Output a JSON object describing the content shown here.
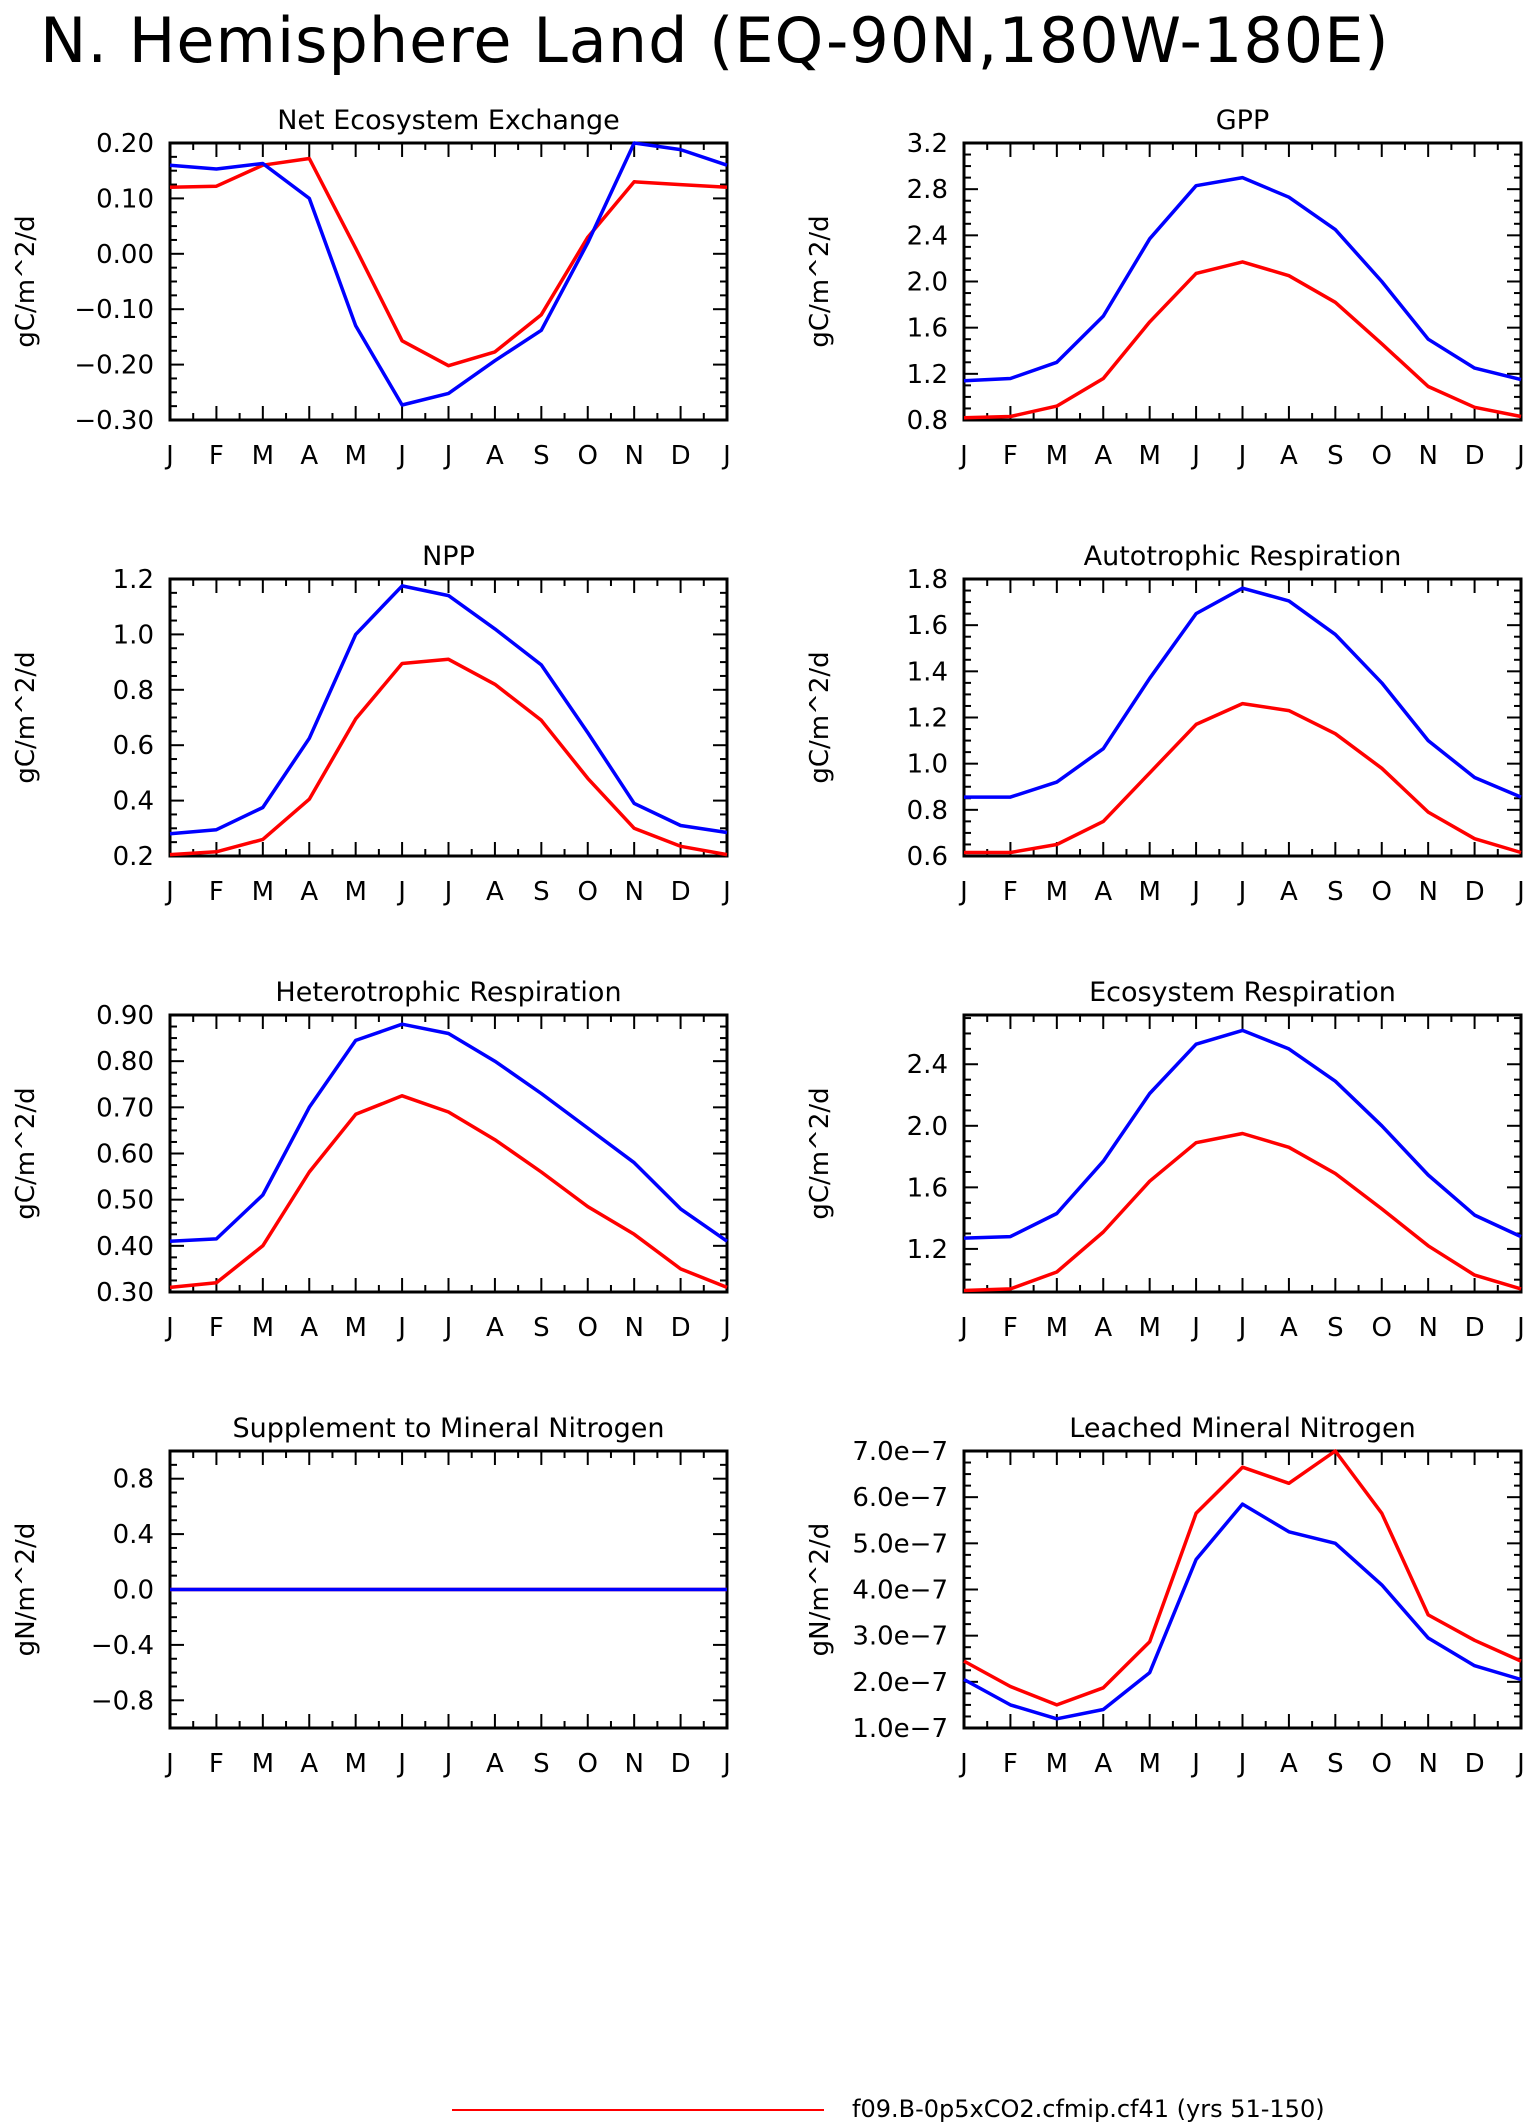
{
  "page_title": "N. Hemisphere Land (EQ-90N,180W-180E)",
  "legend": {
    "label": "f09.B-0p5xCO2.cfmip.cf41 (yrs 51-150)",
    "color": "#ff0000"
  },
  "colors": {
    "red_series": "#ff0000",
    "blue_series": "#0000ff",
    "axis": "#000000"
  },
  "chart_data": [
    {
      "type": "line",
      "title": "Net Ecosystem Exchange",
      "ylabel": "gC/m^2/d",
      "categories": [
        "J",
        "F",
        "M",
        "A",
        "M",
        "J",
        "J",
        "A",
        "S",
        "O",
        "N",
        "D",
        "J"
      ],
      "ylim": [
        -0.3,
        0.2
      ],
      "yticks": [
        -0.3,
        -0.2,
        -0.1,
        0.0,
        0.1,
        0.2
      ],
      "ytick_labels": [
        "−0.30",
        "−0.20",
        "−0.10",
        "0.00",
        "0.10",
        "0.20"
      ],
      "series": [
        {
          "color": "#ff0000",
          "values": [
            0.12,
            0.122,
            0.16,
            0.172,
            0.01,
            -0.157,
            -0.202,
            -0.177,
            -0.11,
            0.03,
            0.13,
            0.125,
            0.12
          ]
        },
        {
          "color": "#0000ff",
          "values": [
            0.16,
            0.153,
            0.163,
            0.1,
            -0.13,
            -0.273,
            -0.252,
            -0.193,
            -0.138,
            0.02,
            0.2,
            0.188,
            0.16
          ]
        }
      ]
    },
    {
      "type": "line",
      "title": "GPP",
      "ylabel": "gC/m^2/d",
      "categories": [
        "J",
        "F",
        "M",
        "A",
        "M",
        "J",
        "J",
        "A",
        "S",
        "O",
        "N",
        "D",
        "J"
      ],
      "ylim": [
        0.8,
        3.2
      ],
      "yticks": [
        0.8,
        1.2,
        1.6,
        2.0,
        2.4,
        2.8,
        3.2
      ],
      "ytick_labels": [
        "0.8",
        "1.2",
        "1.6",
        "2.0",
        "2.4",
        "2.8",
        "3.2"
      ],
      "series": [
        {
          "color": "#ff0000",
          "values": [
            0.82,
            0.83,
            0.92,
            1.16,
            1.65,
            2.07,
            2.17,
            2.05,
            1.82,
            1.46,
            1.09,
            0.91,
            0.83
          ]
        },
        {
          "color": "#0000ff",
          "values": [
            1.14,
            1.16,
            1.3,
            1.7,
            2.37,
            2.83,
            2.9,
            2.73,
            2.45,
            2.0,
            1.5,
            1.25,
            1.15
          ]
        }
      ]
    },
    {
      "type": "line",
      "title": "NPP",
      "ylabel": "gC/m^2/d",
      "categories": [
        "J",
        "F",
        "M",
        "A",
        "M",
        "J",
        "J",
        "A",
        "S",
        "O",
        "N",
        "D",
        "J"
      ],
      "ylim": [
        0.2,
        1.2
      ],
      "yticks": [
        0.2,
        0.4,
        0.6,
        0.8,
        1.0,
        1.2
      ],
      "ytick_labels": [
        "0.2",
        "0.4",
        "0.6",
        "0.8",
        "1.0",
        "1.2"
      ],
      "series": [
        {
          "color": "#ff0000",
          "values": [
            0.205,
            0.215,
            0.26,
            0.405,
            0.695,
            0.895,
            0.91,
            0.82,
            0.69,
            0.48,
            0.3,
            0.235,
            0.205
          ]
        },
        {
          "color": "#0000ff",
          "values": [
            0.28,
            0.295,
            0.375,
            0.625,
            1.0,
            1.175,
            1.14,
            1.02,
            0.89,
            0.645,
            0.39,
            0.31,
            0.285
          ]
        }
      ]
    },
    {
      "type": "line",
      "title": "Autotrophic Respiration",
      "ylabel": "gC/m^2/d",
      "categories": [
        "J",
        "F",
        "M",
        "A",
        "M",
        "J",
        "J",
        "A",
        "S",
        "O",
        "N",
        "D",
        "J"
      ],
      "ylim": [
        0.6,
        1.8
      ],
      "yticks": [
        0.6,
        0.8,
        1.0,
        1.2,
        1.4,
        1.6,
        1.8
      ],
      "ytick_labels": [
        "0.6",
        "0.8",
        "1.0",
        "1.2",
        "1.4",
        "1.6",
        "1.8"
      ],
      "series": [
        {
          "color": "#ff0000",
          "values": [
            0.615,
            0.615,
            0.65,
            0.75,
            0.96,
            1.17,
            1.26,
            1.23,
            1.13,
            0.98,
            0.79,
            0.675,
            0.615
          ]
        },
        {
          "color": "#0000ff",
          "values": [
            0.855,
            0.855,
            0.92,
            1.065,
            1.37,
            1.65,
            1.76,
            1.705,
            1.56,
            1.35,
            1.1,
            0.94,
            0.855
          ]
        }
      ]
    },
    {
      "type": "line",
      "title": "Heterotrophic Respiration",
      "ylabel": "gC/m^2/d",
      "categories": [
        "J",
        "F",
        "M",
        "A",
        "M",
        "J",
        "J",
        "A",
        "S",
        "O",
        "N",
        "D",
        "J"
      ],
      "ylim": [
        0.3,
        0.9
      ],
      "yticks": [
        0.3,
        0.4,
        0.5,
        0.6,
        0.7,
        0.8,
        0.9
      ],
      "ytick_labels": [
        "0.30",
        "0.40",
        "0.50",
        "0.60",
        "0.70",
        "0.80",
        "0.90"
      ],
      "series": [
        {
          "color": "#ff0000",
          "values": [
            0.31,
            0.32,
            0.4,
            0.56,
            0.685,
            0.725,
            0.69,
            0.63,
            0.56,
            0.485,
            0.425,
            0.35,
            0.31
          ]
        },
        {
          "color": "#0000ff",
          "values": [
            0.41,
            0.415,
            0.51,
            0.7,
            0.845,
            0.88,
            0.86,
            0.8,
            0.73,
            0.655,
            0.58,
            0.48,
            0.41
          ]
        }
      ]
    },
    {
      "type": "line",
      "title": "Ecosystem Respiration",
      "ylabel": "gC/m^2/d",
      "categories": [
        "J",
        "F",
        "M",
        "A",
        "M",
        "J",
        "J",
        "A",
        "S",
        "O",
        "N",
        "D",
        "J"
      ],
      "ylim": [
        0.92,
        2.72
      ],
      "yticks": [
        1.2,
        1.6,
        2.0,
        2.4
      ],
      "ytick_labels": [
        "1.2",
        "1.6",
        "2.0",
        "2.4"
      ],
      "series": [
        {
          "color": "#ff0000",
          "values": [
            0.93,
            0.94,
            1.05,
            1.31,
            1.64,
            1.89,
            1.95,
            1.86,
            1.69,
            1.46,
            1.22,
            1.03,
            0.94
          ]
        },
        {
          "color": "#0000ff",
          "values": [
            1.27,
            1.28,
            1.43,
            1.77,
            2.21,
            2.53,
            2.62,
            2.5,
            2.29,
            2.0,
            1.68,
            1.42,
            1.28
          ]
        }
      ]
    },
    {
      "type": "line",
      "title": "Supplement to Mineral Nitrogen",
      "ylabel": "gN/m^2/d",
      "categories": [
        "J",
        "F",
        "M",
        "A",
        "M",
        "J",
        "J",
        "A",
        "S",
        "O",
        "N",
        "D",
        "J"
      ],
      "ylim": [
        -1.0,
        1.0
      ],
      "yticks": [
        -0.8,
        -0.4,
        0.0,
        0.4,
        0.8
      ],
      "ytick_labels": [
        "−0.8",
        "−0.4",
        "0.0",
        "0.4",
        "0.8"
      ],
      "series": [
        {
          "color": "#ff0000",
          "values": [
            0,
            0,
            0,
            0,
            0,
            0,
            0,
            0,
            0,
            0,
            0,
            0,
            0
          ]
        },
        {
          "color": "#0000ff",
          "values": [
            0,
            0,
            0,
            0,
            0,
            0,
            0,
            0,
            0,
            0,
            0,
            0,
            0
          ]
        }
      ]
    },
    {
      "type": "line",
      "title": "Leached Mineral Nitrogen",
      "ylabel": "gN/m^2/d",
      "categories": [
        "J",
        "F",
        "M",
        "A",
        "M",
        "J",
        "J",
        "A",
        "S",
        "O",
        "N",
        "D",
        "J"
      ],
      "ylim": [
        1e-07,
        7e-07
      ],
      "yticks": [
        1e-07,
        2e-07,
        3e-07,
        4e-07,
        5e-07,
        6e-07,
        7e-07
      ],
      "ytick_labels": [
        "1.0e−7",
        "2.0e−7",
        "3.0e−7",
        "4.0e−7",
        "5.0e−7",
        "6.0e−7",
        "7.0e−7"
      ],
      "series": [
        {
          "color": "#ff0000",
          "values": [
            2.45e-07,
            1.9e-07,
            1.5e-07,
            1.87e-07,
            2.87e-07,
            5.65e-07,
            6.65e-07,
            6.3e-07,
            7e-07,
            5.65e-07,
            3.45e-07,
            2.9e-07,
            2.45e-07
          ]
        },
        {
          "color": "#0000ff",
          "values": [
            2.05e-07,
            1.5e-07,
            1.2e-07,
            1.4e-07,
            2.2e-07,
            4.65e-07,
            5.85e-07,
            5.25e-07,
            5e-07,
            4.1e-07,
            2.95e-07,
            2.35e-07,
            2.05e-07
          ]
        }
      ]
    }
  ]
}
